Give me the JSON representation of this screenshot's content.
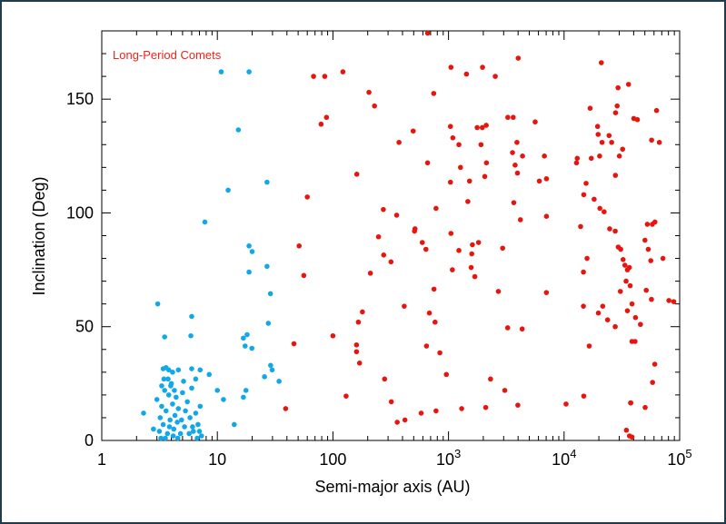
{
  "chart_data": {
    "type": "scatter",
    "title": "",
    "xlabel": "Semi-major axis (AU)",
    "ylabel": "Inclination (Deg)",
    "xscale": "log",
    "xlim": [
      1,
      100000
    ],
    "ylim": [
      0,
      180
    ],
    "xticks": [
      {
        "value": 1,
        "base": "1",
        "exp": ""
      },
      {
        "value": 10,
        "base": "10",
        "exp": ""
      },
      {
        "value": 100,
        "base": "100",
        "exp": ""
      },
      {
        "value": 1000,
        "base": "10",
        "exp": "3"
      },
      {
        "value": 10000,
        "base": "10",
        "exp": "4"
      },
      {
        "value": 100000,
        "base": "10",
        "exp": "5"
      }
    ],
    "yticks": [
      {
        "value": 0,
        "label": "0"
      },
      {
        "value": 50,
        "label": "50"
      },
      {
        "value": 100,
        "label": "100"
      },
      {
        "value": 150,
        "label": "150"
      }
    ],
    "grid": false,
    "annotations": [
      {
        "text": "Long-Period Comets",
        "color": "#e8251f",
        "placement": "top-left"
      }
    ],
    "series": [
      {
        "color": "#10a8e8",
        "points": [
          [
            10.8,
            162
          ],
          [
            18.8,
            162
          ],
          [
            15.2,
            136.5
          ],
          [
            12.4,
            110
          ],
          [
            26.9,
            113.5
          ],
          [
            7.8,
            96
          ],
          [
            18.8,
            85.5
          ],
          [
            20.0,
            83
          ],
          [
            18.8,
            74
          ],
          [
            26.9,
            76.5
          ],
          [
            28.8,
            64.5
          ],
          [
            3.05,
            60
          ],
          [
            6.0,
            54.5
          ],
          [
            18.1,
            46.5
          ],
          [
            16.8,
            45
          ],
          [
            3.5,
            45.5
          ],
          [
            5.9,
            46
          ],
          [
            17.4,
            41.5
          ],
          [
            19.9,
            40.5
          ],
          [
            27.6,
            51.5
          ],
          [
            3.4,
            31.5
          ],
          [
            3.6,
            32
          ],
          [
            3.8,
            31
          ],
          [
            4.1,
            30
          ],
          [
            4.6,
            31
          ],
          [
            6.0,
            31.5
          ],
          [
            7.1,
            31
          ],
          [
            8.5,
            29
          ],
          [
            25.6,
            28
          ],
          [
            29.8,
            31
          ],
          [
            28.9,
            33
          ],
          [
            34.2,
            26
          ],
          [
            3.3,
            24
          ],
          [
            5.1,
            26
          ],
          [
            6.5,
            27
          ],
          [
            10.0,
            22
          ],
          [
            11.3,
            18
          ],
          [
            16.8,
            19
          ],
          [
            17.7,
            22
          ],
          [
            2.3,
            12
          ],
          [
            2.8,
            5
          ],
          [
            3.0,
            18
          ],
          [
            3.2,
            10
          ],
          [
            3.3,
            15
          ],
          [
            3.4,
            7
          ],
          [
            3.5,
            22
          ],
          [
            3.6,
            13
          ],
          [
            3.7,
            3
          ],
          [
            3.8,
            20
          ],
          [
            3.9,
            9
          ],
          [
            4.0,
            25
          ],
          [
            4.1,
            16
          ],
          [
            4.2,
            5
          ],
          [
            4.3,
            11
          ],
          [
            4.4,
            19
          ],
          [
            4.5,
            8
          ],
          [
            4.6,
            14
          ],
          [
            4.8,
            3
          ],
          [
            5.0,
            21
          ],
          [
            5.2,
            6
          ],
          [
            5.5,
            17
          ],
          [
            5.8,
            10
          ],
          [
            6.0,
            23
          ],
          [
            6.2,
            4
          ],
          [
            6.5,
            12
          ],
          [
            6.8,
            7
          ],
          [
            7.1,
            15
          ],
          [
            7.3,
            2
          ],
          [
            14.0,
            7
          ],
          [
            3.45,
            27
          ],
          [
            3.75,
            27
          ],
          [
            3.95,
            24
          ],
          [
            4.25,
            22
          ],
          [
            3.55,
            1
          ],
          [
            3.85,
            6
          ],
          [
            4.15,
            2
          ],
          [
            3.25,
            1
          ],
          [
            4.55,
            1
          ],
          [
            5.3,
            13
          ],
          [
            5.7,
            3
          ],
          [
            6.1,
            6
          ],
          [
            6.7,
            1
          ],
          [
            7.0,
            4
          ],
          [
            4.9,
            9
          ],
          [
            3.15,
            4
          ]
        ]
      },
      {
        "color": "#e8150f",
        "points": [
          [
            660,
            179
          ],
          [
            122,
            162
          ],
          [
            85,
            160
          ],
          [
            68,
            160
          ],
          [
            1050,
            164
          ],
          [
            1970,
            164
          ],
          [
            4010,
            168
          ],
          [
            1430,
            161
          ],
          [
            2540,
            160
          ],
          [
            21000,
            166
          ],
          [
            36100,
            156.5
          ],
          [
            29300,
            155
          ],
          [
            43100,
            141
          ],
          [
            40100,
            141.5
          ],
          [
            63100,
            145
          ],
          [
            57200,
            132
          ],
          [
            66700,
            131
          ],
          [
            28800,
            147
          ],
          [
            27900,
            144
          ],
          [
            16800,
            146
          ],
          [
            205,
            153
          ],
          [
            229,
            147
          ],
          [
            88,
            142
          ],
          [
            79,
            139
          ],
          [
            745,
            152.5
          ],
          [
            495,
            136
          ],
          [
            373,
            131
          ],
          [
            1230,
            130
          ],
          [
            1040,
            138
          ],
          [
            1090,
            133
          ],
          [
            1770,
            137.5
          ],
          [
            1960,
            137.5
          ],
          [
            2120,
            138.5
          ],
          [
            3260,
            142
          ],
          [
            3630,
            142
          ],
          [
            5620,
            140
          ],
          [
            6760,
            125
          ],
          [
            3910,
            131
          ],
          [
            3580,
            126.5
          ],
          [
            3770,
            121
          ],
          [
            3950,
            117.5
          ],
          [
            4370,
            125
          ],
          [
            1270,
            120
          ],
          [
            1910,
            130
          ],
          [
            2130,
            122
          ],
          [
            2060,
            116
          ],
          [
            1520,
            114
          ],
          [
            1470,
            105
          ],
          [
            1040,
            113.5
          ],
          [
            659,
            122
          ],
          [
            161,
            117
          ],
          [
            60,
            107
          ],
          [
            273,
            101.5
          ],
          [
            248,
            89.5
          ],
          [
            356,
            99
          ],
          [
            513,
            93
          ],
          [
            508,
            92
          ],
          [
            593,
            87
          ],
          [
            638,
            84
          ],
          [
            780,
            102
          ],
          [
            1050,
            91
          ],
          [
            1230,
            83.5
          ],
          [
            1610,
            86
          ],
          [
            1590,
            82
          ],
          [
            1820,
            87
          ],
          [
            2940,
            84.5
          ],
          [
            4190,
            97
          ],
          [
            3670,
            104.5
          ],
          [
            7040,
            98.5
          ],
          [
            6110,
            114
          ],
          [
            7040,
            115
          ],
          [
            12800,
            122
          ],
          [
            13000,
            124
          ],
          [
            15500,
            113
          ],
          [
            17200,
            124
          ],
          [
            18200,
            106
          ],
          [
            20300,
            125
          ],
          [
            19700,
            134.5
          ],
          [
            21300,
            131
          ],
          [
            25800,
            131
          ],
          [
            24500,
            134
          ],
          [
            19500,
            138
          ],
          [
            27800,
            116.5
          ],
          [
            30100,
            125
          ],
          [
            32100,
            128
          ],
          [
            13900,
            94
          ],
          [
            14800,
            108
          ],
          [
            20400,
            102
          ],
          [
            22200,
            100.5
          ],
          [
            24800,
            93
          ],
          [
            27700,
            92
          ],
          [
            30900,
            84
          ],
          [
            29400,
            85
          ],
          [
            32400,
            79.5
          ],
          [
            33600,
            77
          ],
          [
            35300,
            75
          ],
          [
            34400,
            70
          ],
          [
            37300,
            68
          ],
          [
            36700,
            76
          ],
          [
            38700,
            60
          ],
          [
            52500,
            95
          ],
          [
            58000,
            95
          ],
          [
            61100,
            96
          ],
          [
            50100,
            88
          ],
          [
            53500,
            84
          ],
          [
            56300,
            79
          ],
          [
            71700,
            80
          ],
          [
            80700,
            61.5
          ],
          [
            88900,
            61
          ],
          [
            57000,
            62
          ],
          [
            15800,
            80
          ],
          [
            14700,
            74
          ],
          [
            14700,
            59
          ],
          [
            21600,
            59
          ],
          [
            19800,
            56
          ],
          [
            23800,
            53
          ],
          [
            27700,
            50
          ],
          [
            30700,
            65.5
          ],
          [
            35300,
            57
          ],
          [
            41500,
            54
          ],
          [
            45800,
            51
          ],
          [
            51400,
            66
          ],
          [
            7030,
            65
          ],
          [
            2700,
            65.5
          ],
          [
            1690,
            72
          ],
          [
            1570,
            76
          ],
          [
            1080,
            75
          ],
          [
            749,
            66.5
          ],
          [
            683,
            56
          ],
          [
            765,
            52
          ],
          [
            414,
            59
          ],
          [
            318,
            78.5
          ],
          [
            275,
            81.5
          ],
          [
            211,
            73.5
          ],
          [
            180,
            56.5
          ],
          [
            166,
            52
          ],
          [
            160,
            42
          ],
          [
            56,
            72.5
          ],
          [
            51,
            85.5
          ],
          [
            46,
            42.5
          ],
          [
            3250,
            49.5
          ],
          [
            4340,
            49
          ],
          [
            842,
            38.5
          ],
          [
            645,
            41.5
          ],
          [
            958,
            29
          ],
          [
            2310,
            27
          ],
          [
            3070,
            22
          ],
          [
            14800,
            19.5
          ],
          [
            16500,
            41.5
          ],
          [
            38700,
            43.5
          ],
          [
            41100,
            43.5
          ],
          [
            60900,
            33.5
          ],
          [
            58300,
            25.5
          ],
          [
            50300,
            14.5
          ],
          [
            37600,
            16.5
          ],
          [
            37800,
            16.5
          ],
          [
            34600,
            4.5
          ],
          [
            36800,
            2
          ],
          [
            38700,
            1.5
          ],
          [
            10400,
            16
          ],
          [
            3980,
            15.5
          ],
          [
            2100,
            14.5
          ],
          [
            1300,
            14
          ],
          [
            780,
            13
          ],
          [
            580,
            12
          ],
          [
            420,
            9
          ],
          [
            360,
            8
          ],
          [
            320,
            17
          ],
          [
            280,
            27
          ],
          [
            170,
            34
          ],
          [
            160,
            39
          ],
          [
            130,
            19.5
          ],
          [
            100,
            46
          ],
          [
            39,
            14
          ]
        ]
      }
    ]
  }
}
